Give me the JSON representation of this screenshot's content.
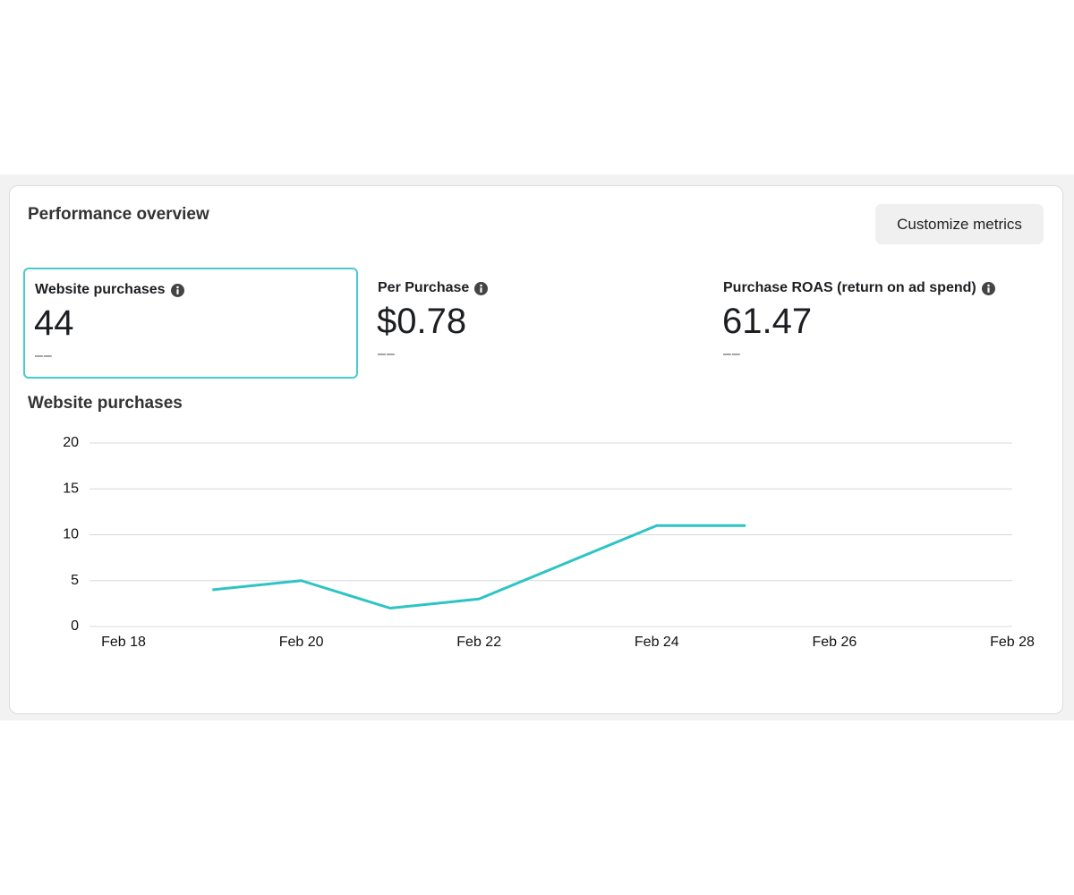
{
  "header": {
    "title": "Performance overview",
    "button": "Customize metrics"
  },
  "metrics": [
    {
      "label": "Website purchases",
      "value": "44",
      "delta": "––",
      "selected": true
    },
    {
      "label": "Per Purchase",
      "value": "$0.78",
      "delta": "––",
      "selected": false
    },
    {
      "label": "Purchase ROAS (return on ad spend)",
      "value": "61.47",
      "delta": "––",
      "selected": false
    }
  ],
  "chart_data": {
    "type": "line",
    "title": "Website purchases",
    "categories": [
      "Feb 18",
      null,
      "Feb 20",
      null,
      "Feb 22",
      null,
      "Feb 24",
      null,
      "Feb 26",
      null,
      "Feb 28"
    ],
    "values": [
      null,
      4,
      5,
      2,
      3,
      7,
      11,
      11,
      null,
      null,
      null
    ],
    "color": "#2ec4c4",
    "ylim": [
      0,
      20
    ],
    "yticks": [
      0,
      5,
      10,
      15,
      20
    ],
    "grid": true
  }
}
